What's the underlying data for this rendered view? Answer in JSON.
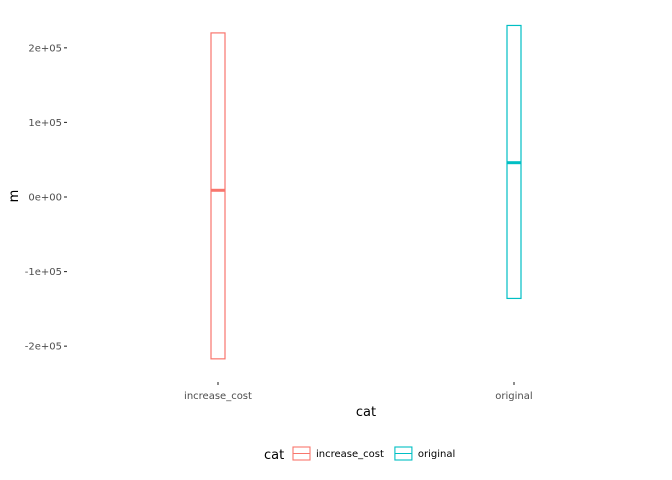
{
  "chart_data": {
    "type": "boxplot",
    "xlabel": "cat",
    "ylabel": "m",
    "ylim": [
      -240000,
      240000
    ],
    "y_ticks": [
      {
        "value": 200000,
        "label": "2e+05"
      },
      {
        "value": 100000,
        "label": "1e+05"
      },
      {
        "value": 0,
        "label": "0e+00"
      },
      {
        "value": -100000,
        "label": "-1e+05"
      },
      {
        "value": -200000,
        "label": "-2e+05"
      }
    ],
    "categories": [
      "increase_cost",
      "original"
    ],
    "series": [
      {
        "name": "increase_cost",
        "color": "#F8766D",
        "low": -217000,
        "median": 9000,
        "high": 220000
      },
      {
        "name": "original",
        "color": "#00BFC4",
        "low": -136000,
        "median": 46000,
        "high": 230000
      }
    ],
    "legend": {
      "title": "cat",
      "position": "bottom",
      "items": [
        "increase_cost",
        "original"
      ]
    },
    "grid": false
  }
}
